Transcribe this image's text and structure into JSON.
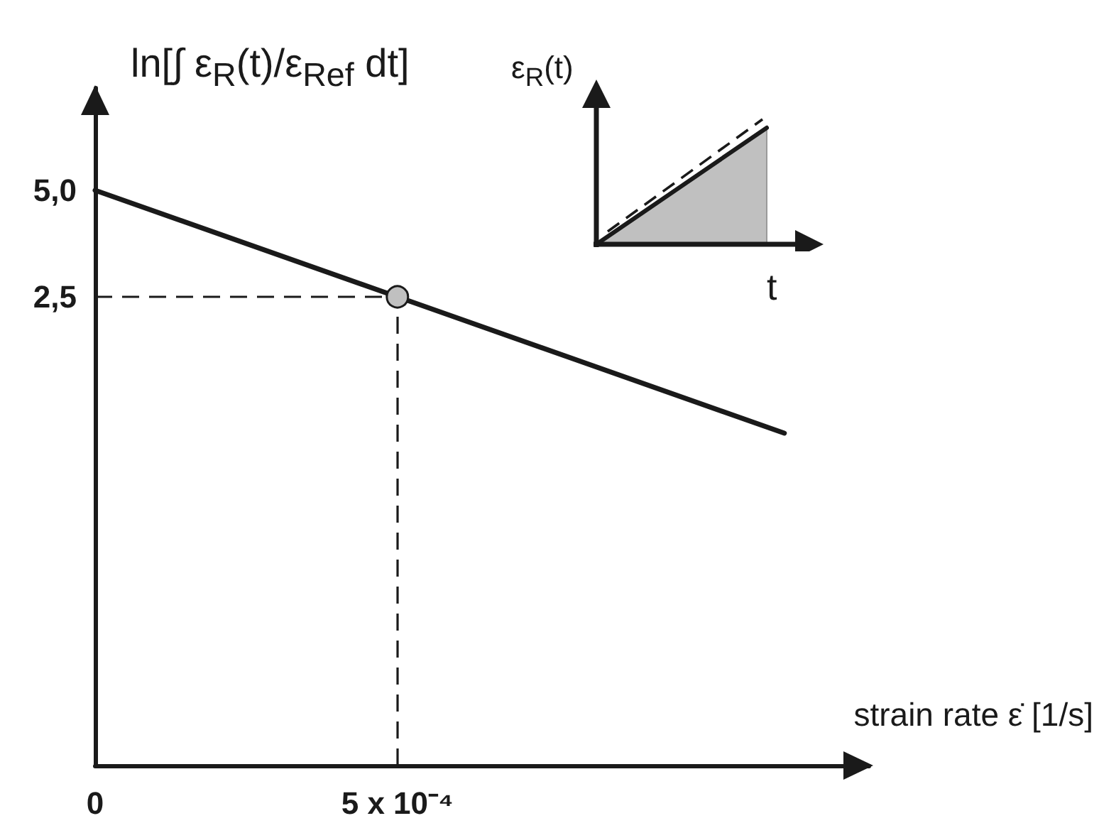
{
  "chart_data": {
    "type": "line",
    "ylabel": "ln[∫ ε$_{R}$(t)/ε$_{Ref}$ dt]",
    "xlabel": "strain rate ε̇ [1/s]",
    "annotations": [
      "ε$_{R}$(t)",
      "t"
    ],
    "series": [
      {
        "color": "#1a1a1a",
        "x": [
          0,
          0.0005,
          0.00114
        ],
        "values": [
          5,
          2.5,
          -0.7
        ],
        "marker": "none",
        "line_style": "solid"
      },
      {
        "type": "scatter",
        "color": "#c0c0c0",
        "x": [
          0.0005
        ],
        "values": [
          2.5
        ],
        "marker": "circle"
      }
    ],
    "xlim": [
      0,
      0.00128
    ],
    "ylim": [
      -8.5,
      7.4
    ],
    "xticks": [
      0,
      {
        "value": 0.0005,
        "label": "5 x 10⁻⁴"
      }
    ],
    "yticks": [
      {
        "value": 2.5,
        "label": "2,5"
      },
      {
        "value": 5,
        "label": "5,0"
      }
    ],
    "ref_lines": [
      {
        "axis": "y",
        "value": 2.5,
        "line_style": "dashed",
        "color": "#1a1a1a"
      },
      {
        "axis": "x",
        "value": 0.0005,
        "line_style": "dashed",
        "color": "#1a1a1a"
      }
    ],
    "grid": false
  }
}
